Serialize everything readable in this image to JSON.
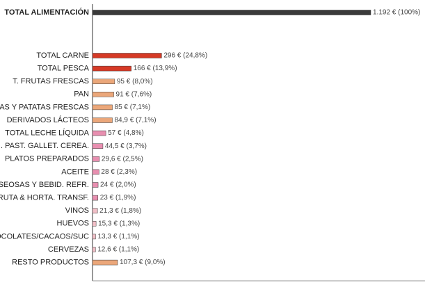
{
  "chart_data": {
    "type": "bar",
    "orientation": "horizontal",
    "categories": [
      "TOTAL ALIMENTACIÓN",
      "TOTAL CARNE",
      "TOTAL PESCA",
      "T. FRUTAS FRESCAS",
      "PAN",
      "AS Y PATATAS FRESCAS",
      "DERIVADOS LÁCTEOS",
      "TOTAL LECHE LÍQUIDA",
      ". PAST. GALLET. CEREA.",
      "PLATOS PREPARADOS",
      "ACEITE",
      "ASEOSAS Y BEBID. REFR.",
      "RUTA & HORTA. TRANSF.",
      "VINOS",
      "HUEVOS",
      "OCOLATES/CACAOS/SUC",
      "CERVEZAS",
      "RESTO PRODUCTOS"
    ],
    "values": [
      1192,
      296,
      166,
      95,
      91,
      85,
      84.9,
      57,
      44.5,
      29.6,
      28,
      24,
      23,
      21.3,
      15.3,
      13.3,
      12.6,
      107.3
    ],
    "value_labels": [
      "1.192 € (100%)",
      "296 € (24,8%)",
      "166 € (13,9%)",
      "95 € (8,0%)",
      "91 € (7,6%)",
      "85 € (7,1%)",
      "84,9 € (7,1%)",
      "57 € (4,8%)",
      "44,5 € (3,7%)",
      "29,6 € (2,5%)",
      "28 € (2,3%)",
      "24 € (2,0%)",
      "23 € (1,9%)",
      "21,3 € (1,8%)",
      "15,3 € (1,3%)",
      "13,3 € (1,1%)",
      "12,6 € (1,1%)",
      "107,3 € (9,0%)"
    ],
    "colors": [
      "#3a3a3a",
      "#d63a26",
      "#d63a26",
      "#eba77a",
      "#eba77a",
      "#eba77a",
      "#eba77a",
      "#e88fb0",
      "#e88fb0",
      "#e88fb0",
      "#e88fb0",
      "#e88fb0",
      "#e88fb0",
      "#f2c0c8",
      "#f2c0c8",
      "#f2c0c8",
      "#f2c0c8",
      "#eba77a"
    ]
  }
}
